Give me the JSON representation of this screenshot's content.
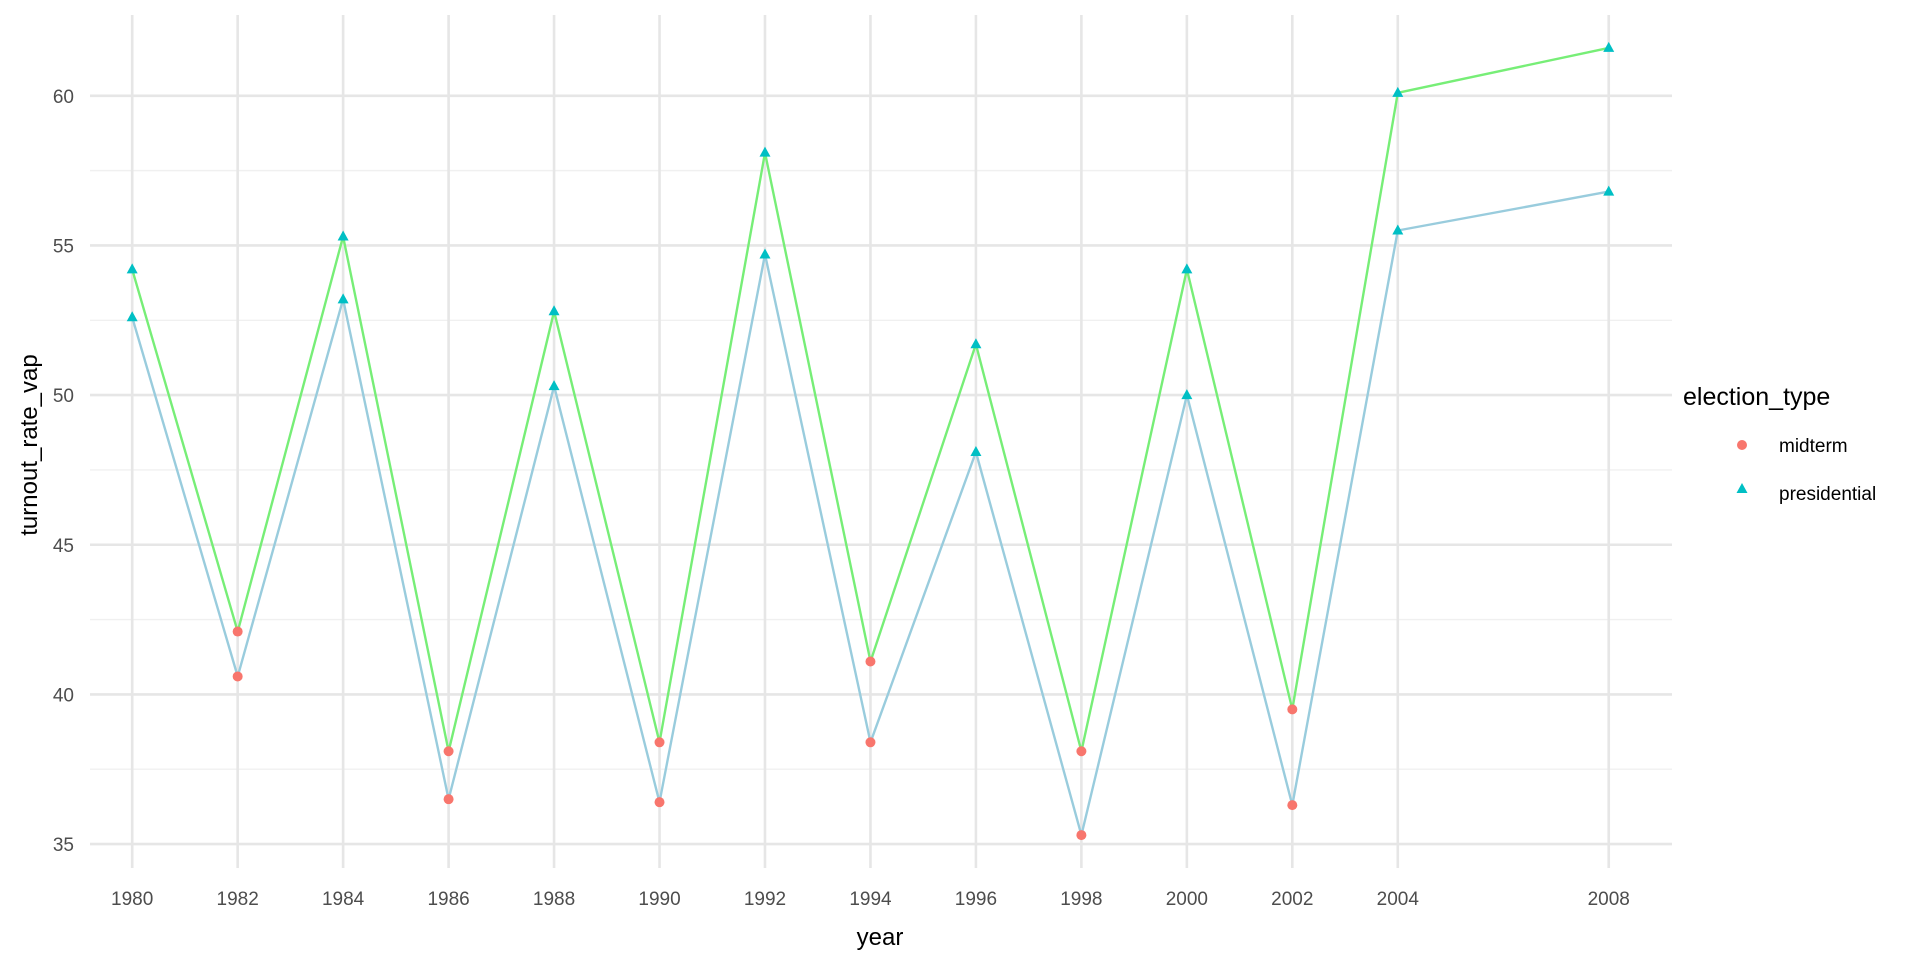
{
  "chart_data": {
    "type": "line",
    "title": "",
    "xlabel": "year",
    "ylabel": "turnout_rate_vap",
    "x": [
      1980,
      1982,
      1984,
      1986,
      1988,
      1990,
      1992,
      1994,
      1996,
      1998,
      2000,
      2002,
      2004,
      2008
    ],
    "x_tick_labels": [
      "1980",
      "1982",
      "1984",
      "1986",
      "1988",
      "1990",
      "1992",
      "1994",
      "1996",
      "1998",
      "2000",
      "2002",
      "2004",
      "2008"
    ],
    "y_ticks": [
      35,
      40,
      45,
      50,
      55,
      60
    ],
    "y_tick_labels": [
      "35",
      "40",
      "45",
      "50",
      "55",
      "60"
    ],
    "ylim": [
      34.2,
      62.7
    ],
    "grid": true,
    "legend": {
      "title": "election_type",
      "position": "right",
      "entries": [
        {
          "label": "midterm",
          "shape": "circle",
          "color": "#F8766D"
        },
        {
          "label": "presidential",
          "shape": "triangle",
          "color": "#00BFC4"
        }
      ]
    },
    "point_types": [
      "presidential",
      "midterm",
      "presidential",
      "midterm",
      "presidential",
      "midterm",
      "presidential",
      "midterm",
      "presidential",
      "midterm",
      "presidential",
      "midterm",
      "presidential",
      "presidential"
    ],
    "series": [
      {
        "line_color": "#77EE77",
        "values": [
          54.2,
          42.1,
          55.3,
          38.1,
          52.8,
          38.4,
          58.1,
          41.1,
          51.7,
          38.1,
          54.2,
          39.5,
          60.1,
          61.6
        ]
      },
      {
        "line_color": "#99CCDD",
        "values": [
          52.6,
          40.6,
          53.2,
          36.5,
          50.3,
          36.4,
          54.7,
          38.4,
          48.1,
          35.3,
          50.0,
          36.3,
          55.5,
          56.8
        ]
      }
    ]
  }
}
